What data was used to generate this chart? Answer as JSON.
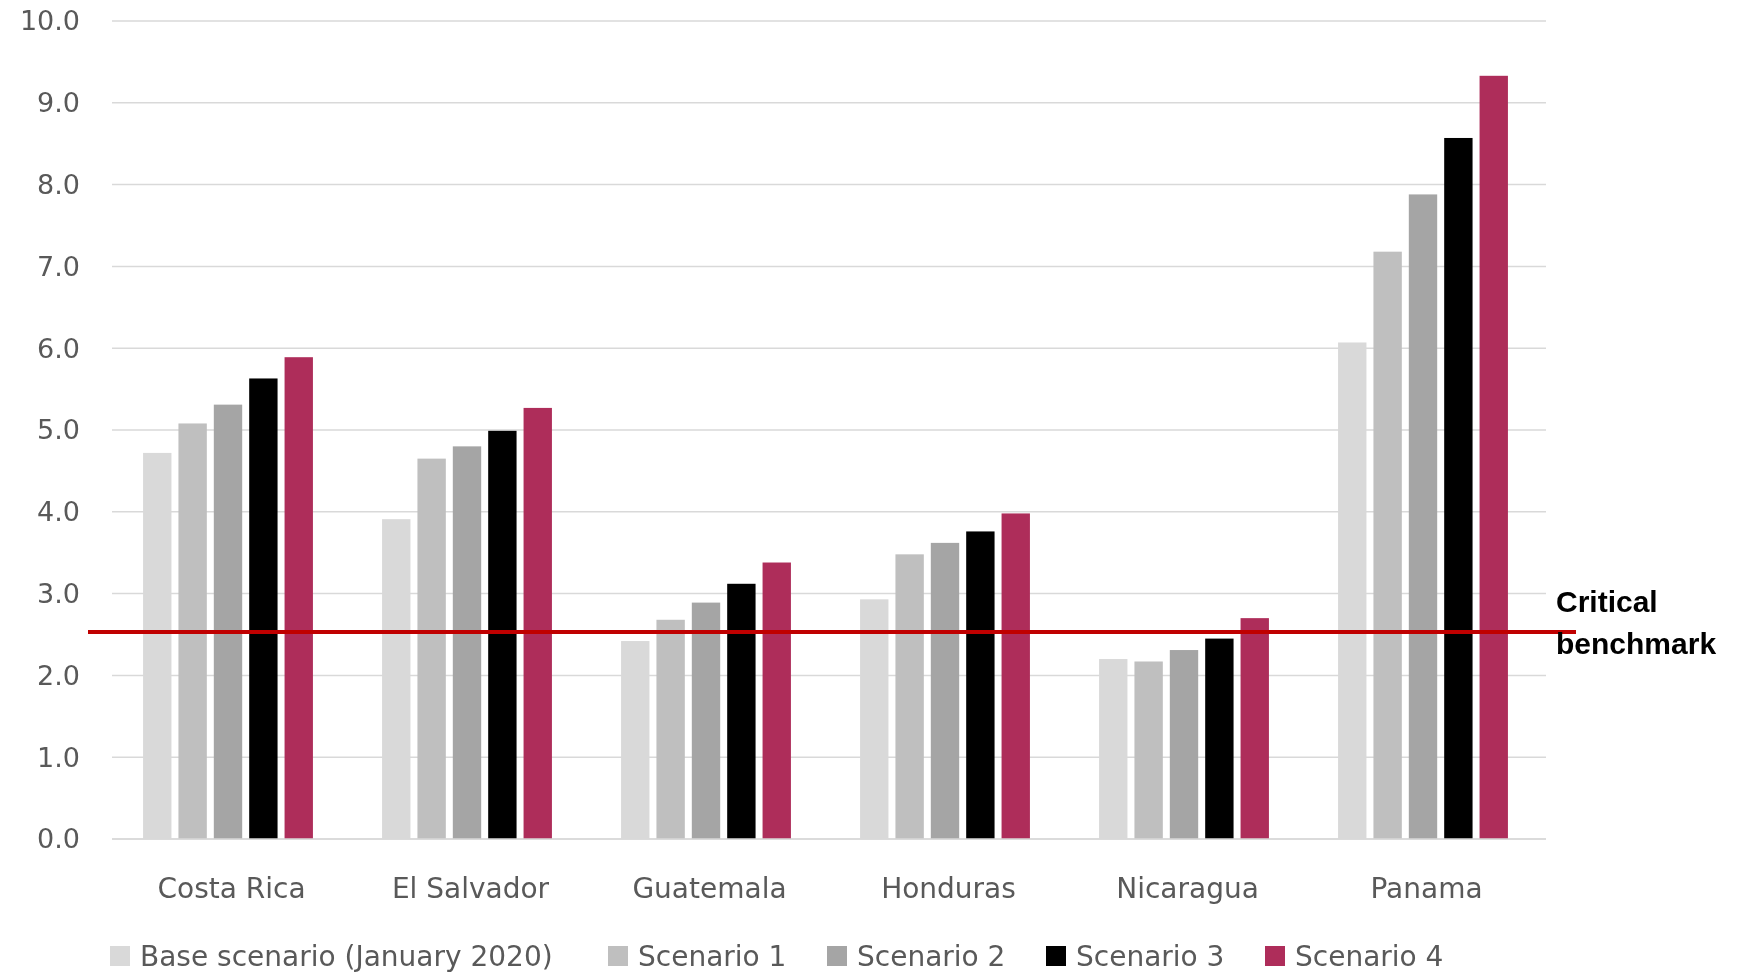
{
  "chart_data": {
    "type": "bar",
    "categories": [
      "Costa Rica",
      "El Salvador",
      "Guatemala",
      "Honduras",
      "Nicaragua",
      "Panama"
    ],
    "series": [
      {
        "name": "Base scenario (January 2020)",
        "color": "#d9d9d9",
        "values": [
          4.72,
          3.91,
          2.42,
          2.93,
          2.2,
          6.07
        ]
      },
      {
        "name": "Scenario 1",
        "color": "#bfbfbf",
        "values": [
          5.08,
          4.65,
          2.68,
          3.48,
          2.17,
          7.18
        ]
      },
      {
        "name": "Scenario 2",
        "color": "#a5a5a5",
        "values": [
          5.31,
          4.8,
          2.89,
          3.62,
          2.31,
          7.88
        ]
      },
      {
        "name": "Scenario 3",
        "color": "#000000",
        "values": [
          5.63,
          4.99,
          3.12,
          3.76,
          2.45,
          8.57
        ]
      },
      {
        "name": "Scenario 4",
        "color": "#ae2d5a",
        "values": [
          5.89,
          5.27,
          3.38,
          3.98,
          2.7,
          9.33
        ]
      }
    ],
    "ylim": [
      0,
      10
    ],
    "yticks": [
      {
        "value": 0,
        "label": "0.0"
      },
      {
        "value": 1,
        "label": "1.0"
      },
      {
        "value": 2,
        "label": "2.0"
      },
      {
        "value": 3,
        "label": "3.0"
      },
      {
        "value": 4,
        "label": "4.0"
      },
      {
        "value": 5,
        "label": "5.0"
      },
      {
        "value": 6,
        "label": "6.0"
      },
      {
        "value": 7,
        "label": "7.0"
      },
      {
        "value": 8,
        "label": "8.0"
      },
      {
        "value": 9,
        "label": "9.0"
      },
      {
        "value": 10,
        "label": "10.0"
      }
    ],
    "grid": "y",
    "legend": "bottom",
    "ref_lines": [
      {
        "axis": "y",
        "value": 2.53,
        "label": "Critical benchmark",
        "color": "#c00000"
      }
    ]
  }
}
